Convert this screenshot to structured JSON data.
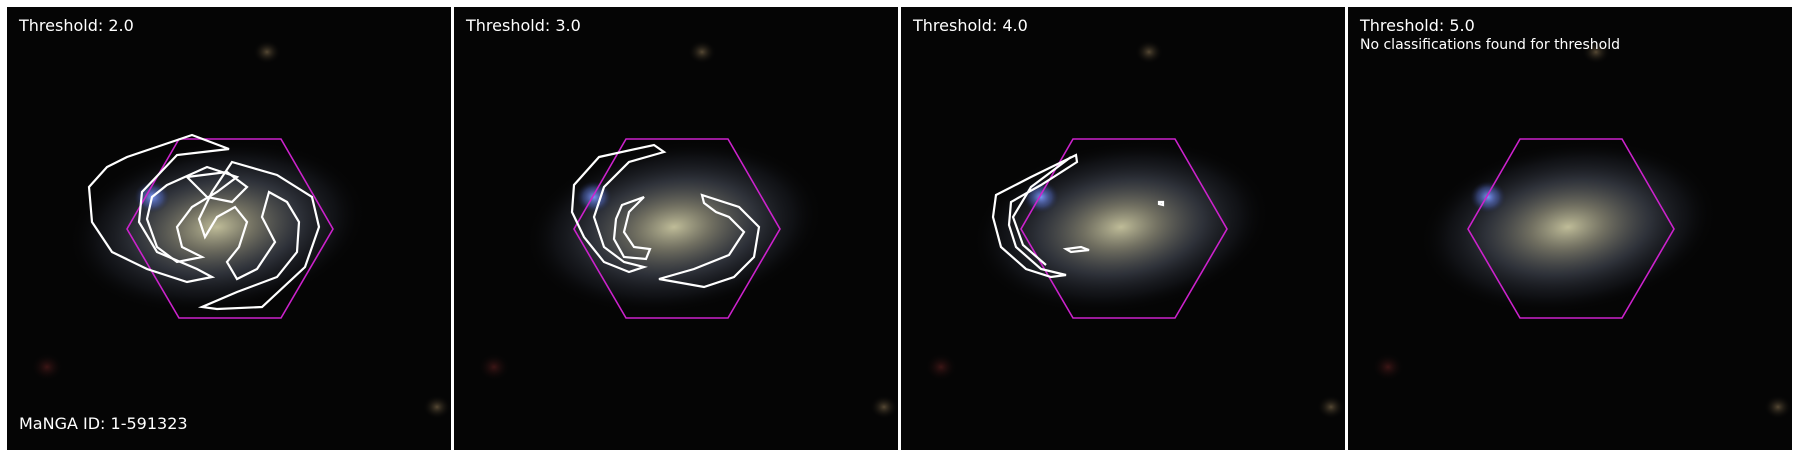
{
  "panels": [
    {
      "title": "Threshold: 2.0",
      "note": ""
    },
    {
      "title": "Threshold: 3.0",
      "note": ""
    },
    {
      "title": "Threshold: 4.0",
      "note": ""
    },
    {
      "title": "Threshold: 5.0",
      "note": "No classifications found for threshold"
    }
  ],
  "manga_label": "MaNGA ID: 1-591323",
  "colors": {
    "background": "#050505",
    "hexagon": "#cc22cc",
    "contour": "#ffffff",
    "text": "#ffffff"
  }
}
